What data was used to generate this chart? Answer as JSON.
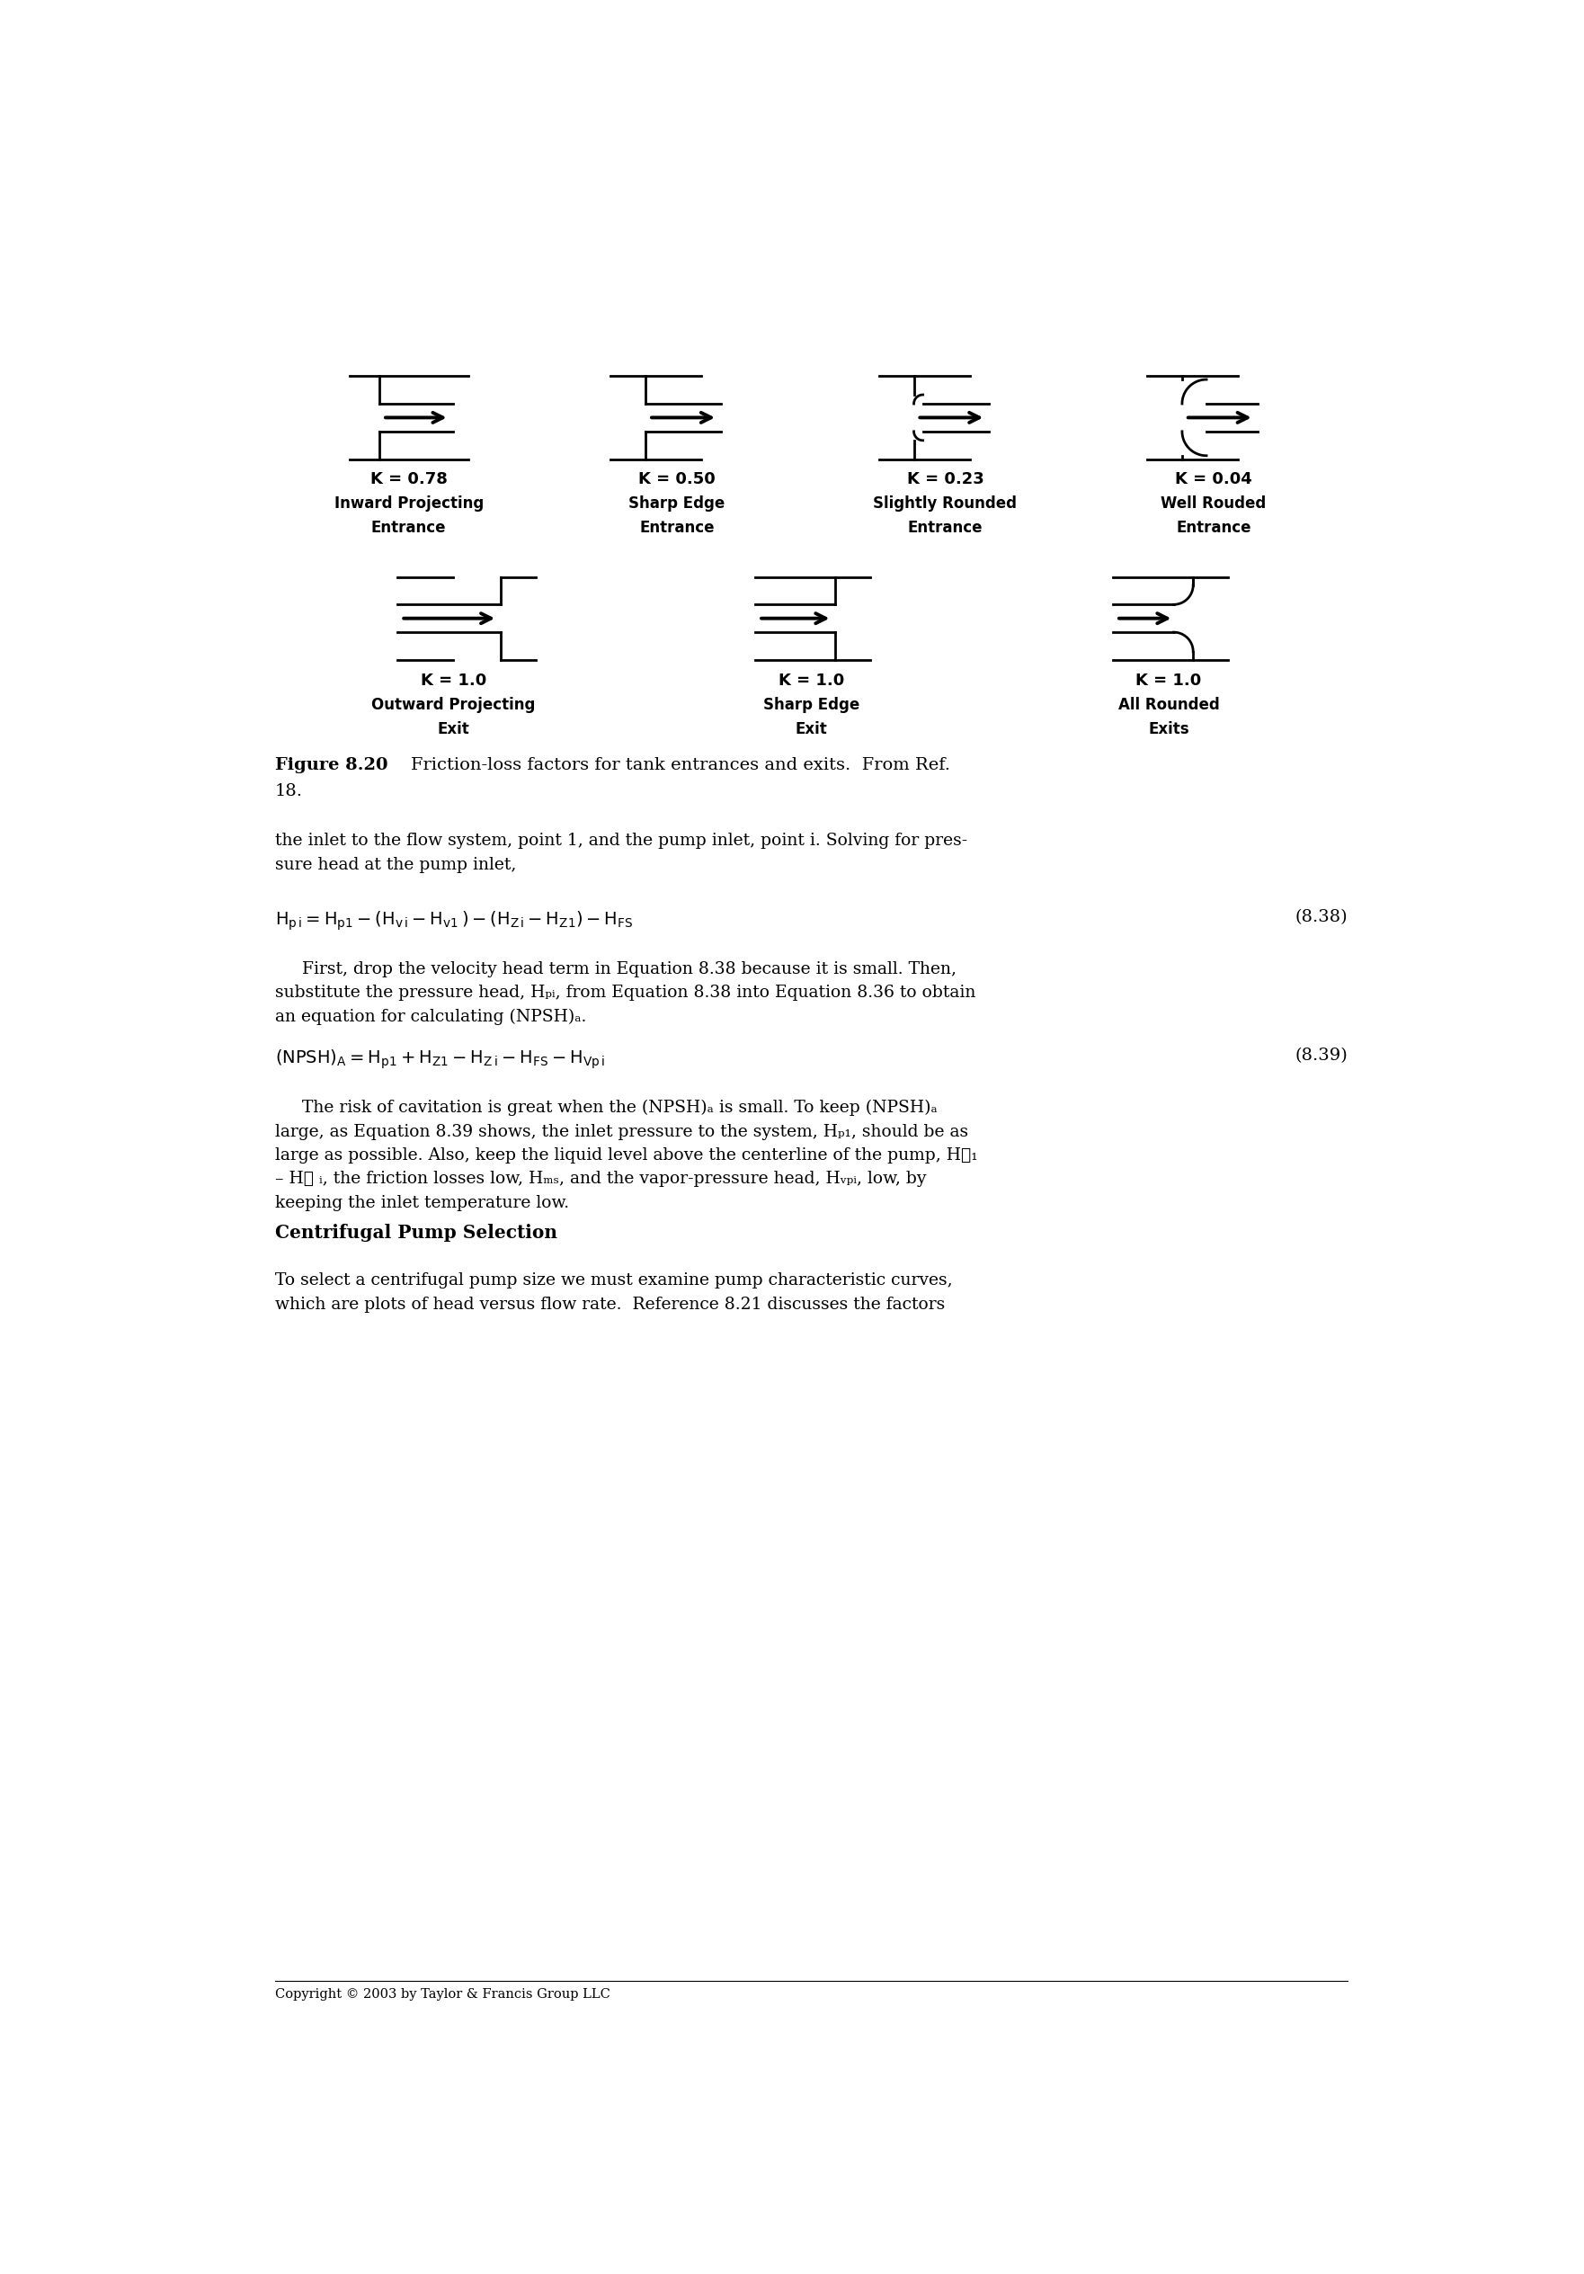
{
  "bg_color": "#ffffff",
  "entrances": [
    {
      "k": "K = 0.78",
      "label1": "Inward Projecting",
      "label2": "Entrance",
      "type": "inward_projecting"
    },
    {
      "k": "K = 0.50",
      "label1": "Sharp Edge",
      "label2": "Entrance",
      "type": "sharp_edge_entrance"
    },
    {
      "k": "K = 0.23",
      "label1": "Slightly Rounded",
      "label2": "Entrance",
      "type": "slightly_rounded_entrance"
    },
    {
      "k": "K = 0.04",
      "label1": "Well Rouded",
      "label2": "Entrance",
      "type": "well_rounded_entrance"
    }
  ],
  "exits": [
    {
      "k": "K = 1.0",
      "label1": "Outward Projecting",
      "label2": "Exit",
      "type": "outward_projecting"
    },
    {
      "k": "K = 1.0",
      "label1": "Sharp Edge",
      "label2": "Exit",
      "type": "sharp_edge_exit"
    },
    {
      "k": "K = 1.0",
      "label1": "All Rounded",
      "label2": "Exits",
      "type": "all_rounded_exit"
    }
  ],
  "copyright": "Copyright © 2003 by Taylor & Francis Group LLC"
}
